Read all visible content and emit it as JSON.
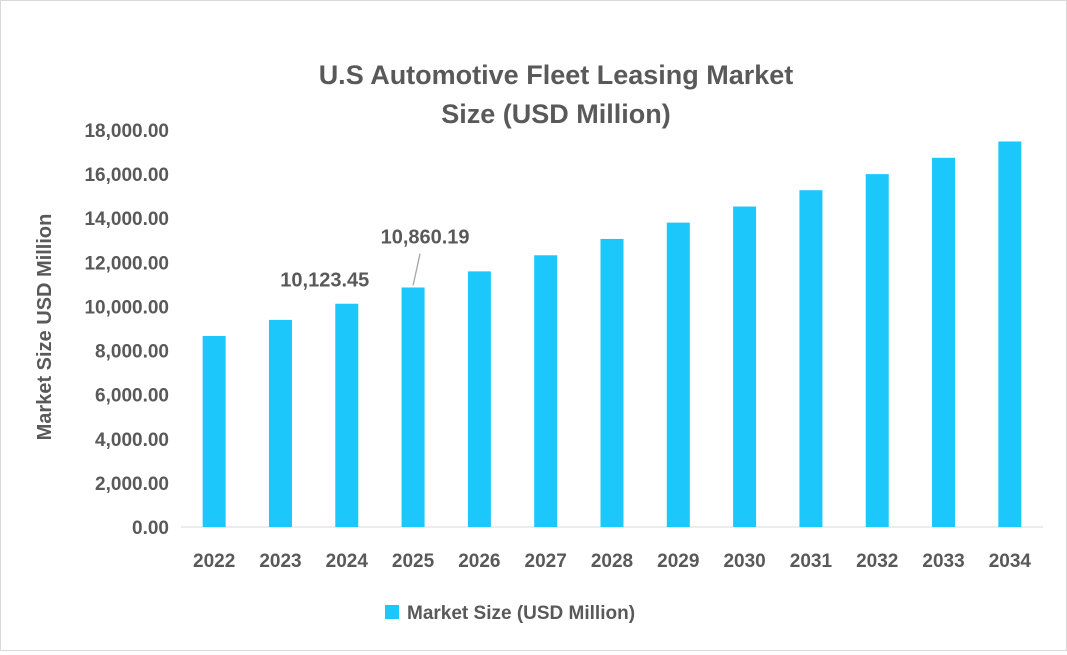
{
  "chart_data": {
    "type": "bar",
    "title": "U.S Automotive Fleet Leasing Market Size (USD Million)",
    "title_lines": [
      "U.S Automotive Fleet Leasing Market",
      "Size (USD Million)"
    ],
    "xlabel": "",
    "ylabel": "Market Size USD Million",
    "ylim": [
      0,
      18000
    ],
    "yticks": [
      "0.00",
      "2,000.00",
      "4,000.00",
      "6,000.00",
      "8,000.00",
      "10,000.00",
      "12,000.00",
      "14,000.00",
      "16,000.00",
      "18,000.00"
    ],
    "categories": [
      "2022",
      "2023",
      "2024",
      "2025",
      "2026",
      "2027",
      "2028",
      "2029",
      "2030",
      "2031",
      "2032",
      "2033",
      "2034"
    ],
    "series": [
      {
        "name": "Market Size (USD Million)",
        "color": "#1CC7FB",
        "values": [
          8660,
          9390,
          10123.45,
          10860.19,
          11590,
          12320,
          13060,
          13800,
          14530,
          15270,
          16000,
          16740,
          17480
        ]
      }
    ],
    "data_labels": [
      {
        "category": "2024",
        "text": "10,123.45"
      },
      {
        "category": "2025",
        "text": "10,860.19"
      }
    ],
    "grid": false,
    "legend": "bottom"
  }
}
